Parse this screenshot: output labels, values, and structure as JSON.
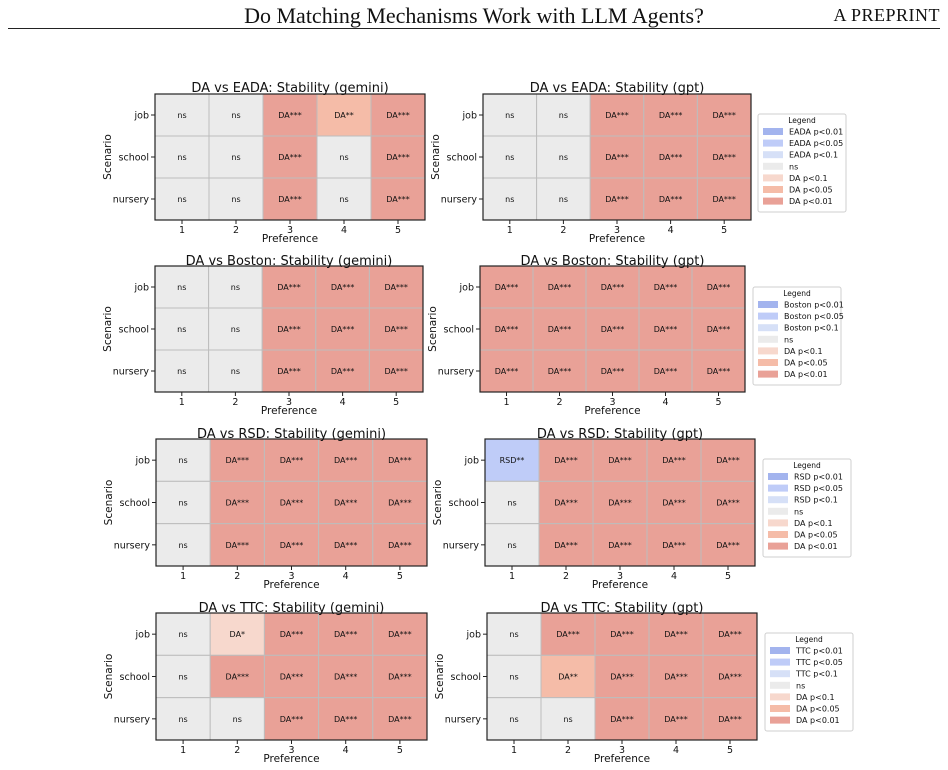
{
  "header": {
    "title": "Do Matching Mechanisms Work with LLM Agents?",
    "preprint": "A PREPRINT"
  },
  "colors": {
    "alt_p01": "#a3b4ee",
    "alt_p05": "#bfccf8",
    "alt_p1": "#d6e0f7",
    "ns": "#ebebeb",
    "da_p1": "#f7d8cd",
    "da_p05": "#f5bca8",
    "da_p01": "#e9a197"
  },
  "chart_data": [
    {
      "type": "heatmap",
      "title": "DA vs EADA: Stability (gemini)",
      "xlabel": "Preference",
      "ylabel": "Scenario",
      "x": [
        "1",
        "2",
        "3",
        "4",
        "5"
      ],
      "y": [
        "job",
        "school",
        "nursery"
      ],
      "cells": [
        [
          "ns",
          "ns",
          "DA***",
          "DA**",
          "DA***"
        ],
        [
          "ns",
          "ns",
          "DA***",
          "ns",
          "DA***"
        ],
        [
          "ns",
          "ns",
          "DA***",
          "ns",
          "DA***"
        ]
      ]
    },
    {
      "type": "heatmap",
      "title": "DA vs EADA: Stability (gpt)",
      "xlabel": "Preference",
      "ylabel": "Scenario",
      "x": [
        "1",
        "2",
        "3",
        "4",
        "5"
      ],
      "y": [
        "job",
        "school",
        "nursery"
      ],
      "cells": [
        [
          "ns",
          "ns",
          "DA***",
          "DA***",
          "DA***"
        ],
        [
          "ns",
          "ns",
          "DA***",
          "DA***",
          "DA***"
        ],
        [
          "ns",
          "ns",
          "DA***",
          "DA***",
          "DA***"
        ]
      ],
      "legend": {
        "title": "Legend",
        "entries": [
          "EADA p<0.01",
          "EADA p<0.05",
          "EADA p<0.1",
          "ns",
          "DA p<0.1",
          "DA p<0.05",
          "DA p<0.01"
        ]
      }
    },
    {
      "type": "heatmap",
      "title": "DA vs Boston: Stability (gemini)",
      "xlabel": "Preference",
      "ylabel": "Scenario",
      "x": [
        "1",
        "2",
        "3",
        "4",
        "5"
      ],
      "y": [
        "job",
        "school",
        "nursery"
      ],
      "cells": [
        [
          "ns",
          "ns",
          "DA***",
          "DA***",
          "DA***"
        ],
        [
          "ns",
          "ns",
          "DA***",
          "DA***",
          "DA***"
        ],
        [
          "ns",
          "ns",
          "DA***",
          "DA***",
          "DA***"
        ]
      ]
    },
    {
      "type": "heatmap",
      "title": "DA vs Boston: Stability (gpt)",
      "xlabel": "Preference",
      "ylabel": "Scenario",
      "x": [
        "1",
        "2",
        "3",
        "4",
        "5"
      ],
      "y": [
        "job",
        "school",
        "nursery"
      ],
      "cells": [
        [
          "DA***",
          "DA***",
          "DA***",
          "DA***",
          "DA***"
        ],
        [
          "DA***",
          "DA***",
          "DA***",
          "DA***",
          "DA***"
        ],
        [
          "DA***",
          "DA***",
          "DA***",
          "DA***",
          "DA***"
        ]
      ],
      "legend": {
        "title": "Legend",
        "entries": [
          "Boston p<0.01",
          "Boston p<0.05",
          "Boston p<0.1",
          "ns",
          "DA p<0.1",
          "DA p<0.05",
          "DA p<0.01"
        ]
      }
    },
    {
      "type": "heatmap",
      "title": "DA vs RSD: Stability (gemini)",
      "xlabel": "Preference",
      "ylabel": "Scenario",
      "x": [
        "1",
        "2",
        "3",
        "4",
        "5"
      ],
      "y": [
        "job",
        "school",
        "nursery"
      ],
      "cells": [
        [
          "ns",
          "DA***",
          "DA***",
          "DA***",
          "DA***"
        ],
        [
          "ns",
          "DA***",
          "DA***",
          "DA***",
          "DA***"
        ],
        [
          "ns",
          "DA***",
          "DA***",
          "DA***",
          "DA***"
        ]
      ]
    },
    {
      "type": "heatmap",
      "title": "DA vs RSD: Stability (gpt)",
      "xlabel": "Preference",
      "ylabel": "Scenario",
      "x": [
        "1",
        "2",
        "3",
        "4",
        "5"
      ],
      "y": [
        "job",
        "school",
        "nursery"
      ],
      "cells": [
        [
          "RSD**",
          "DA***",
          "DA***",
          "DA***",
          "DA***"
        ],
        [
          "ns",
          "DA***",
          "DA***",
          "DA***",
          "DA***"
        ],
        [
          "ns",
          "DA***",
          "DA***",
          "DA***",
          "DA***"
        ]
      ],
      "legend": {
        "title": "Legend",
        "entries": [
          "RSD p<0.01",
          "RSD p<0.05",
          "RSD p<0.1",
          "ns",
          "DA p<0.1",
          "DA p<0.05",
          "DA p<0.01"
        ]
      }
    },
    {
      "type": "heatmap",
      "title": "DA vs TTC: Stability (gemini)",
      "xlabel": "Preference",
      "ylabel": "Scenario",
      "x": [
        "1",
        "2",
        "3",
        "4",
        "5"
      ],
      "y": [
        "job",
        "school",
        "nursery"
      ],
      "cells": [
        [
          "ns",
          "DA*",
          "DA***",
          "DA***",
          "DA***"
        ],
        [
          "ns",
          "DA***",
          "DA***",
          "DA***",
          "DA***"
        ],
        [
          "ns",
          "ns",
          "DA***",
          "DA***",
          "DA***"
        ]
      ]
    },
    {
      "type": "heatmap",
      "title": "DA vs TTC: Stability (gpt)",
      "xlabel": "Preference",
      "ylabel": "Scenario",
      "x": [
        "1",
        "2",
        "3",
        "4",
        "5"
      ],
      "y": [
        "job",
        "school",
        "nursery"
      ],
      "cells": [
        [
          "ns",
          "DA***",
          "DA***",
          "DA***",
          "DA***"
        ],
        [
          "ns",
          "DA**",
          "DA***",
          "DA***",
          "DA***"
        ],
        [
          "ns",
          "ns",
          "DA***",
          "DA***",
          "DA***"
        ]
      ],
      "legend": {
        "title": "Legend",
        "entries": [
          "TTC p<0.01",
          "TTC p<0.05",
          "TTC p<0.1",
          "ns",
          "DA p<0.1",
          "DA p<0.05",
          "DA p<0.01"
        ]
      }
    }
  ]
}
